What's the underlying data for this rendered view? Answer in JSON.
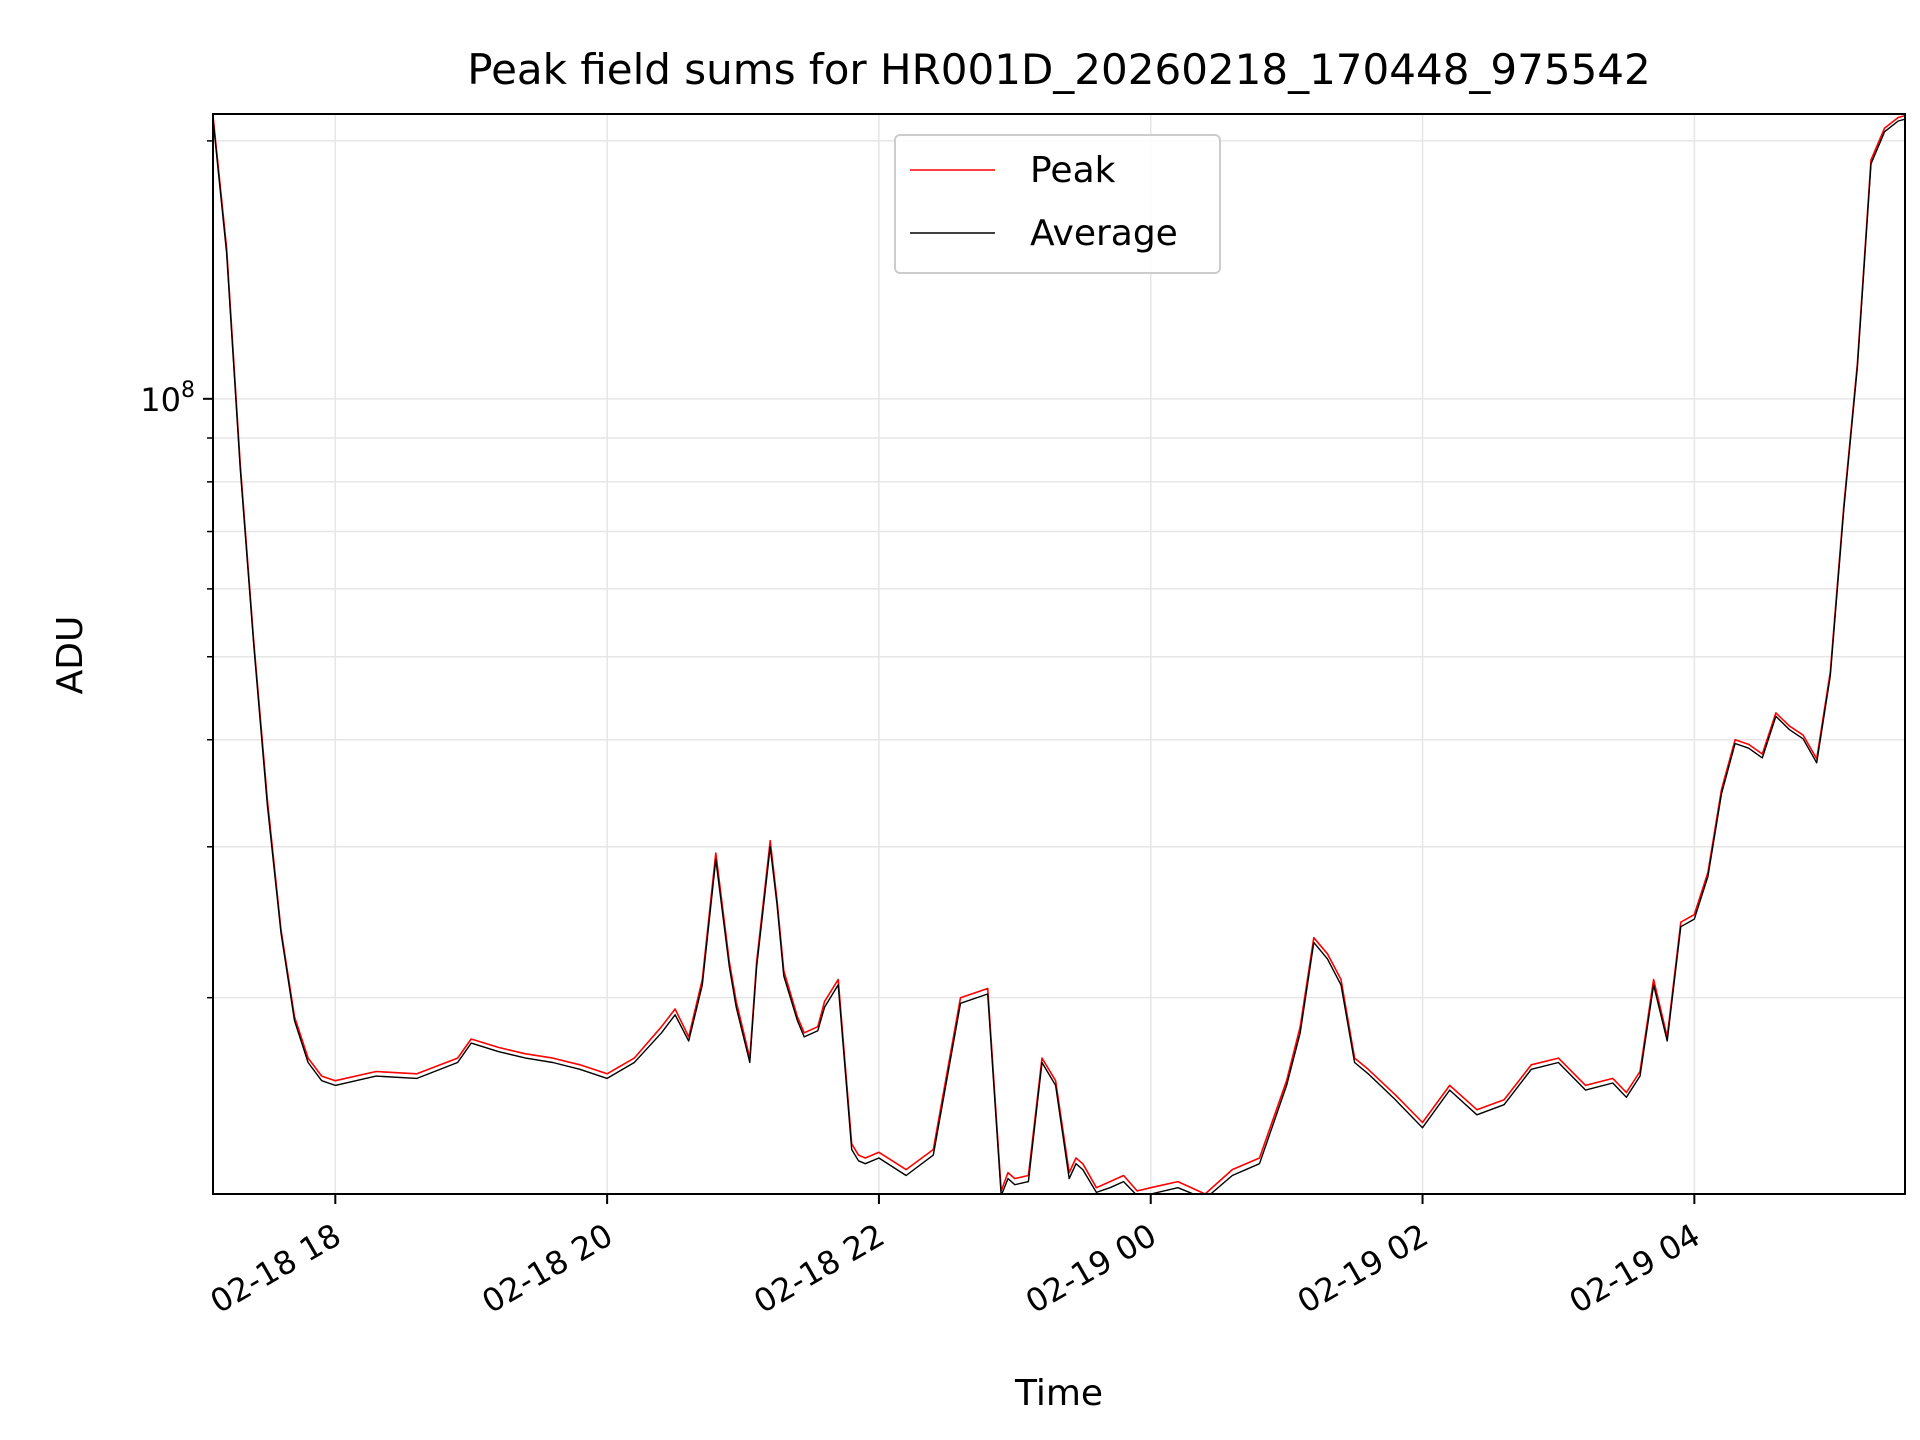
{
  "chart_data": {
    "type": "line",
    "title": "Peak field sums for HR001D_20260218_170448_975542",
    "xlabel": "Time",
    "ylabel": "ADU",
    "yscale": "log",
    "ylim": [
      11800000,
      215000000
    ],
    "xlim_hours": [
      17.1,
      29.55
    ],
    "x_ticks": [
      {
        "hour": 18,
        "label": "02-18 18"
      },
      {
        "hour": 20,
        "label": "02-18 20"
      },
      {
        "hour": 22,
        "label": "02-18 22"
      },
      {
        "hour": 24,
        "label": "02-19 00"
      },
      {
        "hour": 26,
        "label": "02-19 02"
      },
      {
        "hour": 28,
        "label": "02-19 04"
      }
    ],
    "y_major_ticks": [
      {
        "value": 100000000,
        "label_base": "10",
        "label_exp": "8"
      }
    ],
    "y_minor_ticks": [
      20000000,
      30000000,
      40000000,
      50000000,
      60000000,
      70000000,
      80000000,
      90000000,
      200000000
    ],
    "legend": {
      "position": "upper-center",
      "entries": [
        "Peak",
        "Average"
      ]
    },
    "series": [
      {
        "name": "Peak",
        "color": "#ff0000",
        "x": [
          17.1,
          17.2,
          17.3,
          17.4,
          17.5,
          17.6,
          17.7,
          17.8,
          17.9,
          18.0,
          18.3,
          18.6,
          18.9,
          19.0,
          19.2,
          19.4,
          19.6,
          19.8,
          20.0,
          20.2,
          20.4,
          20.5,
          20.6,
          20.7,
          20.8,
          20.9,
          20.95,
          21.05,
          21.1,
          21.2,
          21.25,
          21.3,
          21.4,
          21.45,
          21.55,
          21.6,
          21.7,
          21.8,
          21.85,
          21.9,
          22.0,
          22.2,
          22.4,
          22.6,
          22.8,
          22.9,
          22.95,
          23.0,
          23.1,
          23.2,
          23.3,
          23.4,
          23.45,
          23.5,
          23.6,
          23.7,
          23.8,
          23.9,
          24.0,
          24.2,
          24.4,
          24.6,
          24.8,
          25.0,
          25.1,
          25.2,
          25.3,
          25.4,
          25.5,
          25.6,
          25.8,
          26.0,
          26.2,
          26.4,
          26.6,
          26.8,
          27.0,
          27.2,
          27.4,
          27.5,
          27.6,
          27.7,
          27.8,
          27.9,
          28.0,
          28.1,
          28.2,
          28.3,
          28.4,
          28.5,
          28.6,
          28.7,
          28.8,
          28.9,
          29.0,
          29.1,
          29.2,
          29.3,
          29.4,
          29.5,
          29.55
        ],
        "y": [
          214000000,
          150000000,
          84000000,
          52000000,
          34000000,
          24000000,
          19000000,
          17000000,
          16200000,
          16000000,
          16400000,
          16300000,
          17000000,
          17900000,
          17500000,
          17200000,
          17000000,
          16700000,
          16300000,
          17000000,
          18500000,
          19400000,
          18000000,
          21000000,
          29500000,
          22000000,
          19800000,
          17000000,
          22000000,
          30500000,
          26000000,
          21500000,
          19000000,
          18200000,
          18500000,
          19800000,
          21000000,
          13500000,
          13100000,
          13000000,
          13200000,
          12600000,
          13300000,
          20000000,
          20500000,
          11900000,
          12500000,
          12300000,
          12400000,
          17000000,
          16000000,
          12500000,
          13000000,
          12800000,
          12000000,
          12200000,
          12400000,
          11900000,
          12000000,
          12200000,
          11800000,
          12600000,
          13000000,
          16000000,
          18500000,
          23500000,
          22500000,
          21000000,
          17000000,
          16500000,
          15400000,
          14300000,
          15800000,
          14800000,
          15200000,
          16700000,
          17000000,
          15800000,
          16100000,
          15500000,
          16400000,
          21000000,
          18000000,
          24500000,
          25000000,
          28000000,
          35000000,
          40000000,
          39500000,
          38500000,
          43000000,
          41500000,
          40500000,
          38000000,
          48000000,
          75000000,
          110000000,
          190000000,
          207000000,
          213000000,
          214000000
        ]
      },
      {
        "name": "Average",
        "color": "#000000",
        "x": [
          17.1,
          17.2,
          17.3,
          17.4,
          17.5,
          17.6,
          17.7,
          17.8,
          17.9,
          18.0,
          18.3,
          18.6,
          18.9,
          19.0,
          19.2,
          19.4,
          19.6,
          19.8,
          20.0,
          20.2,
          20.4,
          20.5,
          20.6,
          20.7,
          20.8,
          20.9,
          20.95,
          21.05,
          21.1,
          21.2,
          21.25,
          21.3,
          21.4,
          21.45,
          21.55,
          21.6,
          21.7,
          21.8,
          21.85,
          21.9,
          22.0,
          22.2,
          22.4,
          22.6,
          22.8,
          22.9,
          22.95,
          23.0,
          23.1,
          23.2,
          23.3,
          23.4,
          23.45,
          23.5,
          23.6,
          23.7,
          23.8,
          23.9,
          24.0,
          24.2,
          24.4,
          24.6,
          24.8,
          25.0,
          25.1,
          25.2,
          25.3,
          25.4,
          25.5,
          25.6,
          25.8,
          26.0,
          26.2,
          26.4,
          26.6,
          26.8,
          27.0,
          27.2,
          27.4,
          27.5,
          27.6,
          27.7,
          27.8,
          27.9,
          28.0,
          28.1,
          28.2,
          28.3,
          28.4,
          28.5,
          28.6,
          28.7,
          28.8,
          28.9,
          29.0,
          29.1,
          29.2,
          29.3,
          29.4,
          29.5,
          29.55
        ],
        "y": [
          212000000,
          148000000,
          83000000,
          51500000,
          33500000,
          23800000,
          18800000,
          16800000,
          16000000,
          15800000,
          16200000,
          16100000,
          16800000,
          17700000,
          17300000,
          17000000,
          16800000,
          16500000,
          16100000,
          16800000,
          18200000,
          19100000,
          17800000,
          20700000,
          29000000,
          21700000,
          19500000,
          16800000,
          21700000,
          30000000,
          25700000,
          21200000,
          18800000,
          18000000,
          18300000,
          19500000,
          20700000,
          13300000,
          12900000,
          12800000,
          13000000,
          12400000,
          13100000,
          19700000,
          20200000,
          11750000,
          12300000,
          12100000,
          12200000,
          16800000,
          15800000,
          12300000,
          12800000,
          12600000,
          11850000,
          12000000,
          12200000,
          11750000,
          11800000,
          12000000,
          11650000,
          12400000,
          12800000,
          15800000,
          18200000,
          23200000,
          22200000,
          20700000,
          16800000,
          16300000,
          15200000,
          14100000,
          15600000,
          14600000,
          15000000,
          16500000,
          16800000,
          15600000,
          15900000,
          15300000,
          16200000,
          20700000,
          17800000,
          24200000,
          24700000,
          27700000,
          34600000,
          39600000,
          39100000,
          38100000,
          42600000,
          41100000,
          40100000,
          37600000,
          47500000,
          74300000,
          109000000,
          188000000,
          205000000,
          211000000,
          212000000
        ]
      }
    ]
  }
}
